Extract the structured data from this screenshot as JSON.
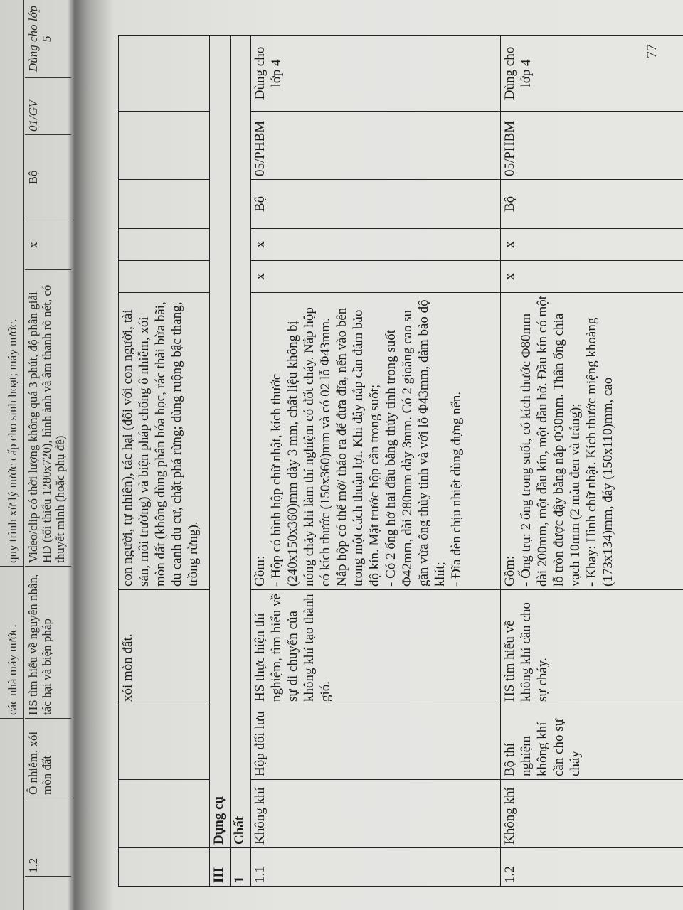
{
  "previous_page": {
    "top_row": {
      "purpose_tail": "các nhà máy nước.",
      "desc_tail": "quy trình xử lý nước cấp cho sinh hoạt; máy nước."
    },
    "row": {
      "stt": "1.2",
      "subject": "Ô nhiễm, xói mòn đất",
      "purpose": "HS tìm hiểu về nguyên nhân, tác hại và biện pháp",
      "description": "Video/clip có thời lượng không quá 3 phút, độ phân giải HD (tối thiểu 1280x720), hình ảnh và âm thanh rõ nét, có thuyết minh (hoặc phụ đề)",
      "mark": "x",
      "unit": "Bộ",
      "code": "01/GV",
      "note": "Dùng cho lớp 5"
    }
  },
  "table": {
    "continuation_row": {
      "purpose": "xói mòn đất.",
      "description": "con người, tự nhiên), tác hại (đối với con người, tài sản, môi trường) và biện pháp chống ô nhiễm, xói mòn đất (không dùng phân hóa học, rác thải bừa bãi, du canh du cư, chặt phá rừng; dùng ruộng bậc thang, trồng rừng)."
    },
    "section": {
      "number": "III",
      "title": "Dụng cụ"
    },
    "subsection": {
      "number": "1",
      "title": "Chất"
    },
    "rows": [
      {
        "stt": "1.1",
        "subject": "Không khí",
        "name": "Hộp đối lưu",
        "purpose": "HS thực hiện thí nghiệm, tìm hiểu về sự di chuyển của không khí tạo thành gió.",
        "description": [
          "Gồm:",
          "- Hộp có hình hộp chữ nhật, kích thước (240x150x360)mm dày 3 mm, chất liệu không bị nóng chảy khi làm thí nghiệm có đốt cháy. Nắp hộp có kích thước (150x360)mm và có 02 lỗ Φ43mm. Nắp hộp có thể mở/ tháo ra để đưa đĩa, nến vào bên trong một cách thuận lợi. Khi đậy nắp cần đảm bảo độ kín. Mặt trước hộp cần trong suốt;",
          "- Có 2 ống hở hai đầu bằng thủy tinh trong suốt Φ42mm, dài 280mm dày 3mm. Có 2 gioăng cao su gắn vừa ống thủy tinh và với lỗ Φ43mm, đảm bảo độ khít;",
          "- Đĩa đèn chịu nhiệt dùng đựng nến."
        ],
        "mark1": "x",
        "mark2": "x",
        "unit": "Bộ",
        "code": "05/PHBM",
        "note": "Dùng cho lớp 4"
      },
      {
        "stt": "1.2",
        "subject": "Không khí",
        "name": "Bộ thí nghiệm không khí cần cho sự cháy",
        "purpose": "HS tìm hiểu về không khí cần cho sự cháy.",
        "description": [
          "Gồm:",
          "- Ống trụ: 2 ống trong suốt, có kích thước Φ80mm dài 200mm, một đầu kín, một đầu hở. Đầu kín có một lỗ tròn được đậy bằng nắp Φ30mm. Thân ống chia vạch 10mm (2 màu đen và trắng);",
          "- Khay: Hình chữ nhật. Kích thước miệng khoảng (173x134)mm, đáy (150x110)mm, cao"
        ],
        "mark1": "x",
        "mark2": "x",
        "unit": "Bộ",
        "code": "05/PHBM",
        "note": "Dùng cho lớp 4"
      }
    ]
  },
  "page_number": "77"
}
